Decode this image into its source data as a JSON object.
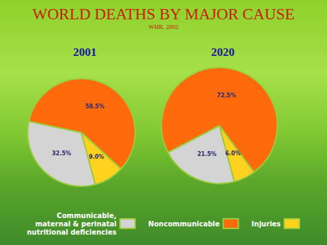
{
  "chart_data": {
    "type": "pie",
    "title": "WORLD DEATHS BY MAJOR CAUSE",
    "subtitle": "WHR, 2002",
    "categories": [
      "Communicable,\nmaternal & perinatal\nnutritional deficiencies",
      "Noncommunicable",
      "Injuries"
    ],
    "colors": [
      "#d4d4d4",
      "#ff6a0d",
      "#ffd21f"
    ],
    "series": [
      {
        "name": "2001",
        "values": [
          32.5,
          58.5,
          9.0
        ],
        "value_labels": [
          "32.5%",
          "58.5%",
          "9.0%"
        ]
      },
      {
        "name": "2020",
        "values": [
          21.5,
          72.5,
          6.0
        ],
        "value_labels": [
          "21.5%",
          "72.5%",
          "6.0%"
        ]
      }
    ],
    "data_labels": true,
    "legend": "bottom"
  }
}
